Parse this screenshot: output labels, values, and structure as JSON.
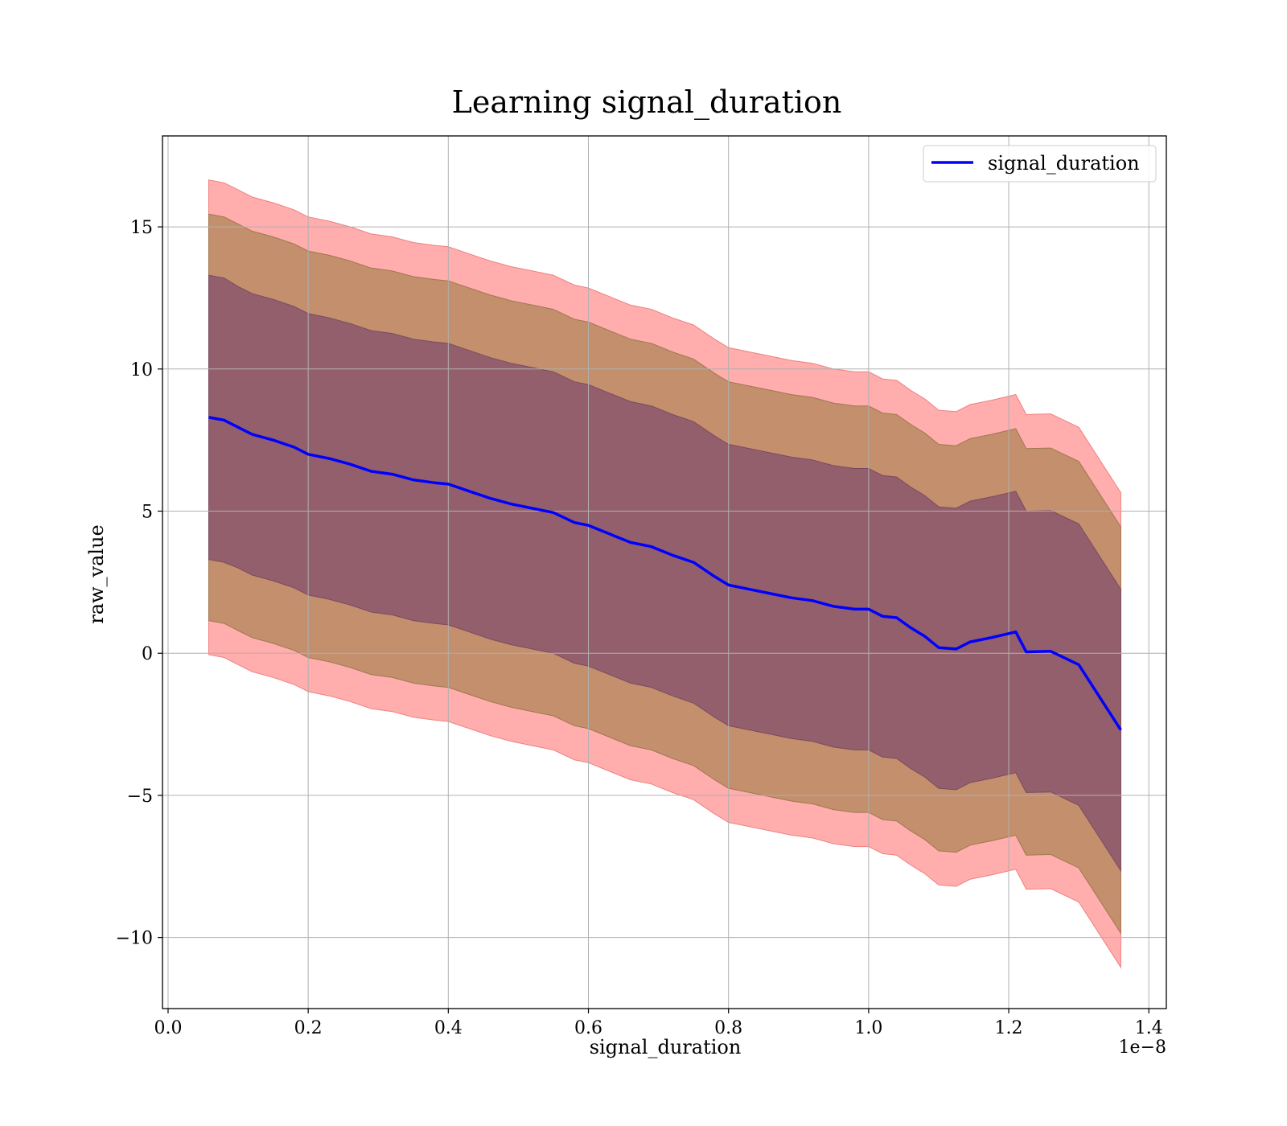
{
  "chart_data": {
    "type": "line",
    "title": "Learning signal_duration",
    "xlabel": "signal_duration",
    "ylabel": "raw_value",
    "x_offset_label": "1e−8",
    "xlim": [
      -0.008,
      1.425
    ],
    "ylim": [
      -12.5,
      18.2
    ],
    "xticks": [
      0.0,
      0.2,
      0.4,
      0.6,
      0.8,
      1.0,
      1.2,
      1.4
    ],
    "xtick_labels": [
      "0.0",
      "0.2",
      "0.4",
      "0.6",
      "0.8",
      "1.0",
      "1.2",
      "1.4"
    ],
    "yticks": [
      -10,
      -5,
      0,
      5,
      10,
      15
    ],
    "ytick_labels": [
      "−10",
      "−5",
      "0",
      "5",
      "10",
      "15"
    ],
    "grid": true,
    "legend": {
      "position": "upper-right",
      "entries": [
        "signal_duration"
      ]
    },
    "colors": {
      "line": "#0000ff",
      "band_outer": "#ff9999",
      "band_middle": "#b88a60",
      "band_inner": "#8f5a6e",
      "grid": "#b0b0b0"
    },
    "series": [
      {
        "name": "signal_duration",
        "x": [
          0.058,
          0.08,
          0.1,
          0.12,
          0.15,
          0.18,
          0.2,
          0.23,
          0.26,
          0.29,
          0.32,
          0.35,
          0.38,
          0.4,
          0.43,
          0.46,
          0.49,
          0.52,
          0.55,
          0.58,
          0.6,
          0.63,
          0.66,
          0.69,
          0.72,
          0.75,
          0.78,
          0.8,
          0.83,
          0.86,
          0.89,
          0.92,
          0.95,
          0.98,
          1.0,
          1.02,
          1.04,
          1.06,
          1.08,
          1.1,
          1.125,
          1.145,
          1.175,
          1.21,
          1.225,
          1.26,
          1.3,
          1.36
        ],
        "y": [
          8.3,
          8.2,
          7.95,
          7.7,
          7.5,
          7.25,
          7.0,
          6.85,
          6.65,
          6.4,
          6.3,
          6.1,
          6.0,
          5.95,
          5.7,
          5.45,
          5.25,
          5.1,
          4.95,
          4.6,
          4.5,
          4.2,
          3.9,
          3.75,
          3.45,
          3.2,
          2.7,
          2.4,
          2.25,
          2.1,
          1.95,
          1.85,
          1.65,
          1.55,
          1.55,
          1.3,
          1.25,
          0.9,
          0.6,
          0.2,
          0.15,
          0.4,
          0.55,
          0.75,
          0.05,
          0.07,
          -0.4,
          -2.7
        ],
        "bands": {
          "sigma1": [
            5.0,
            5.0,
            4.95,
            4.95,
            4.95,
            4.95,
            4.95,
            4.95,
            4.95,
            4.95,
            4.95,
            4.95,
            4.95,
            4.95,
            4.95,
            4.95,
            4.95,
            4.95,
            4.95,
            4.95,
            4.95,
            4.95,
            4.95,
            4.95,
            4.95,
            4.95,
            4.95,
            4.95,
            4.95,
            4.95,
            4.95,
            4.95,
            4.95,
            4.95,
            4.95,
            4.95,
            4.95,
            4.95,
            4.95,
            4.95,
            4.95,
            4.95,
            4.95,
            4.95,
            4.95,
            4.95,
            4.95,
            4.95
          ],
          "sigma2": [
            7.15,
            7.15,
            7.15,
            7.15,
            7.15,
            7.15,
            7.15,
            7.15,
            7.15,
            7.15,
            7.15,
            7.15,
            7.15,
            7.15,
            7.15,
            7.15,
            7.15,
            7.15,
            7.15,
            7.15,
            7.15,
            7.15,
            7.15,
            7.15,
            7.15,
            7.15,
            7.15,
            7.15,
            7.15,
            7.15,
            7.15,
            7.15,
            7.15,
            7.15,
            7.15,
            7.15,
            7.15,
            7.15,
            7.15,
            7.15,
            7.15,
            7.15,
            7.15,
            7.15,
            7.15,
            7.15,
            7.15,
            7.15
          ],
          "sigma3": [
            8.35,
            8.35,
            8.35,
            8.35,
            8.35,
            8.35,
            8.35,
            8.35,
            8.35,
            8.35,
            8.35,
            8.35,
            8.35,
            8.35,
            8.35,
            8.35,
            8.35,
            8.35,
            8.35,
            8.35,
            8.35,
            8.35,
            8.35,
            8.35,
            8.35,
            8.35,
            8.35,
            8.35,
            8.35,
            8.35,
            8.35,
            8.35,
            8.35,
            8.35,
            8.35,
            8.35,
            8.35,
            8.35,
            8.35,
            8.35,
            8.35,
            8.35,
            8.35,
            8.35,
            8.35,
            8.35,
            8.35,
            8.35
          ]
        }
      }
    ]
  }
}
